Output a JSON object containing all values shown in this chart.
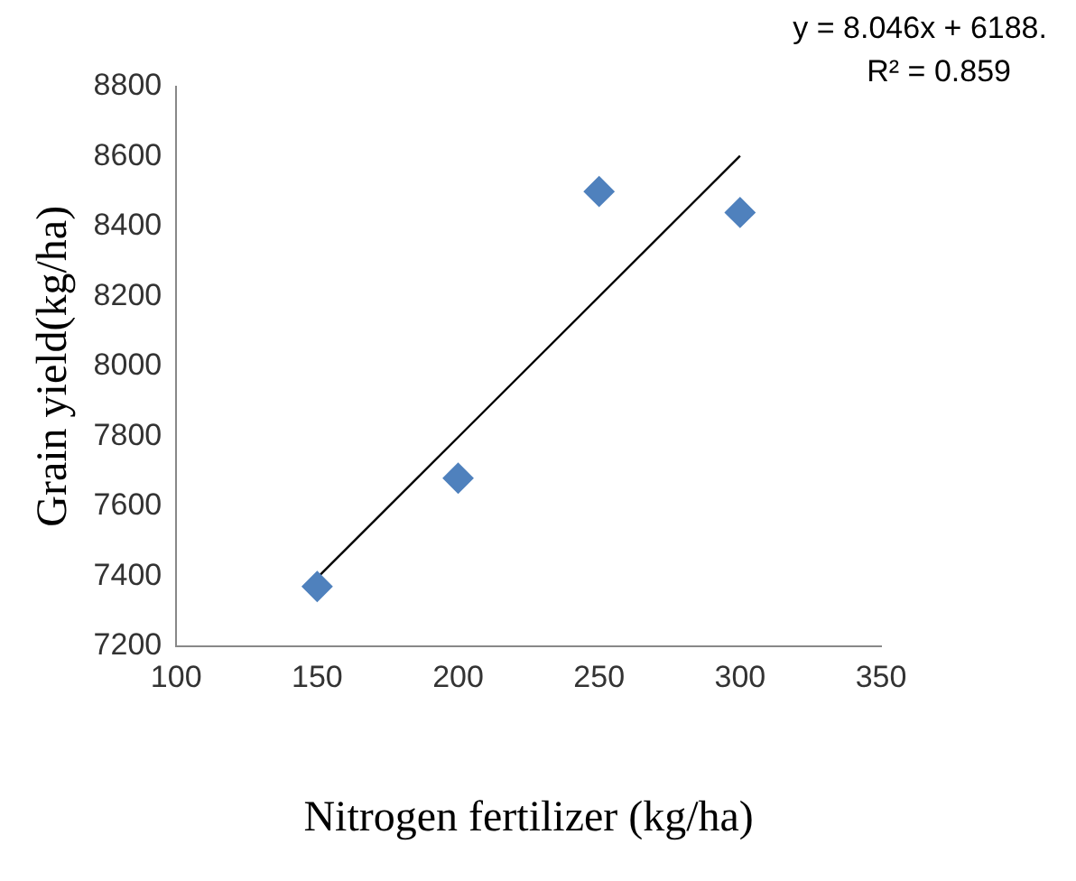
{
  "chart_data": {
    "type": "scatter",
    "xlabel": "Nitrogen fertilizer (kg/ha)",
    "ylabel": "Grain yield(kg/ha)",
    "annotations": [
      "y = 8.046x + 6188.",
      "R² = 0.859"
    ],
    "xlim": [
      100,
      350
    ],
    "xticks": [
      100,
      150,
      200,
      250,
      300,
      350
    ],
    "ylim": [
      7200,
      8800
    ],
    "yticks": [
      7200,
      7400,
      7600,
      7800,
      8000,
      8200,
      8400,
      8600,
      8800
    ],
    "grid": false,
    "legend": false,
    "marker": "diamond",
    "series": [
      {
        "type": "scatter",
        "color": "#4f81bd",
        "x": [
          150,
          200,
          250,
          300
        ],
        "values": [
          7370,
          7680,
          8500,
          8440
        ]
      },
      {
        "type": "line",
        "color": "#000000",
        "x": [
          150,
          300
        ],
        "values": [
          7395,
          8602
        ],
        "line_style": "solid",
        "marker": "none"
      }
    ]
  }
}
